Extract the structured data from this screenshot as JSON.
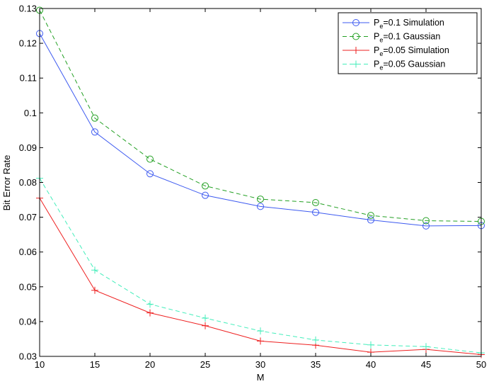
{
  "chart_data": {
    "type": "line",
    "title": "",
    "xlabel": "M",
    "ylabel": "Bit Error Rate",
    "xlim": [
      10,
      50
    ],
    "ylim": [
      0.03,
      0.13
    ],
    "xticks": [
      "10",
      "15",
      "20",
      "25",
      "30",
      "35",
      "40",
      "45",
      "50"
    ],
    "yticks": [
      "0.03",
      "0.04",
      "0.05",
      "0.06",
      "0.07",
      "0.08",
      "0.09",
      "0.1",
      "0.11",
      "0.12",
      "0.13"
    ],
    "x": [
      10,
      15,
      20,
      25,
      30,
      35,
      40,
      45,
      50
    ],
    "grid": false,
    "legend_position": "top-right",
    "series": [
      {
        "name_main": "P",
        "name_sub": "e",
        "name_rest": "=0.1 Simulation",
        "color": "#3d5af0",
        "dash": "solid",
        "marker": "circle",
        "values": [
          0.1228,
          0.0945,
          0.0825,
          0.0763,
          0.0731,
          0.0714,
          0.0692,
          0.0675,
          0.0676
        ]
      },
      {
        "name_main": "P",
        "name_sub": "e",
        "name_rest": "=0.1 Gaussian",
        "color": "#23a023",
        "dash": "dashed",
        "marker": "circle",
        "values": [
          0.1295,
          0.0985,
          0.0867,
          0.079,
          0.0752,
          0.0742,
          0.0705,
          0.069,
          0.0688
        ]
      },
      {
        "name_main": "P",
        "name_sub": "e",
        "name_rest": "=0.05 Simulation",
        "color": "#ee2020",
        "dash": "solid",
        "marker": "plus",
        "values": [
          0.0755,
          0.049,
          0.0425,
          0.0388,
          0.0344,
          0.0332,
          0.0312,
          0.032,
          0.0305
        ]
      },
      {
        "name_main": "P",
        "name_sub": "e",
        "name_rest": "=0.05 Gaussian",
        "color": "#44eebb",
        "dash": "dashed",
        "marker": "plus",
        "values": [
          0.0812,
          0.0548,
          0.045,
          0.041,
          0.0373,
          0.0347,
          0.0333,
          0.0328,
          0.031
        ]
      }
    ]
  }
}
